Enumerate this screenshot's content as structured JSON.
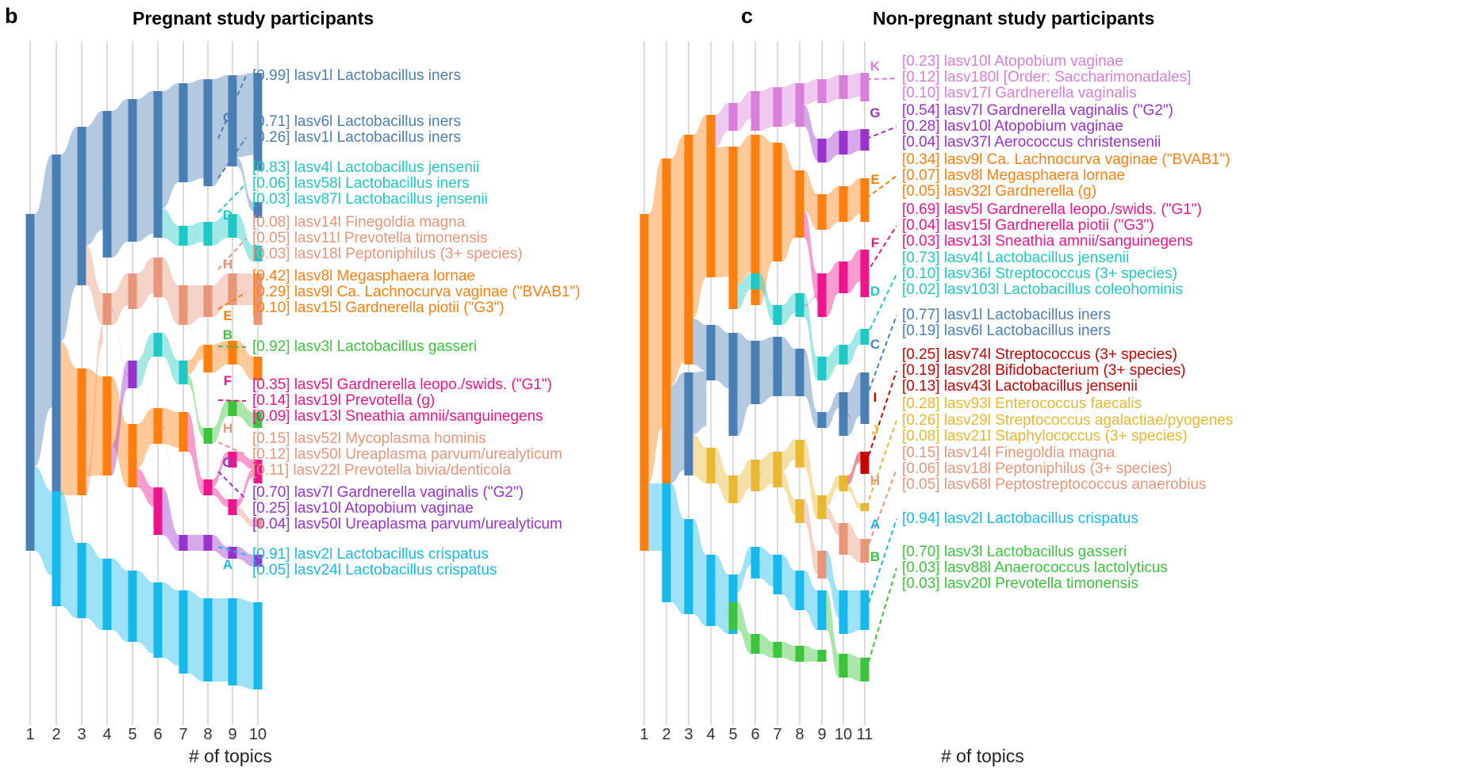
{
  "colors": {
    "A": "#17B9EC",
    "B": "#3CC43C",
    "C": "#4A7FB5",
    "D": "#1FC8C4",
    "E": "#FF7F0E",
    "F": "#F0148C",
    "G": "#9A32CD",
    "H": "#E8957A",
    "I": "#C80000",
    "J": "#E8B830",
    "K": "#D97ED9",
    "root": "#4A7FB5"
  },
  "panels": [
    {
      "id": "b",
      "letter": "b",
      "title": "Pregnant study participants",
      "xlabel": "# of topics",
      "ticks": [
        "1",
        "2",
        "3",
        "4",
        "5",
        "6",
        "7",
        "8",
        "9",
        "10"
      ],
      "final_topics": [
        {
          "id": "C",
          "label": "C",
          "color": "C",
          "annotations": [
            {
              "text": "[0.99] lasv1l Lactobacillus iners"
            },
            {
              "text": "[0.71] lasv6l Lactobacillus iners"
            },
            {
              "text": "[0.26] lasv1l Lactobacillus iners"
            }
          ]
        },
        {
          "id": "D",
          "label": "D",
          "color": "D",
          "annotations": [
            {
              "text": "[0.83] lasv4l Lactobacillus jensenii"
            },
            {
              "text": "[0.06] lasv58l Lactobacillus iners"
            },
            {
              "text": "[0.03] lasv87l Lactobacillus jensenii"
            }
          ]
        },
        {
          "id": "H1",
          "label": "H",
          "color": "H",
          "annotations": [
            {
              "text": "[0.08] lasv14l Finegoldia magna"
            },
            {
              "text": "[0.05] lasv11l Prevotella timonensis"
            },
            {
              "text": "[0.03] lasv18l Peptoniphilus (3+ species)"
            }
          ]
        },
        {
          "id": "E",
          "label": "E",
          "color": "E",
          "annotations": [
            {
              "text": "[0.42] lasv8l Megasphaera lornae"
            },
            {
              "text": "[0.29] lasv9l Ca. Lachnocurva vaginae (\"BVAB1\")"
            },
            {
              "text": "[0.10] lasv15l Gardnerella piotii (\"G3\")"
            }
          ]
        },
        {
          "id": "B",
          "label": "B",
          "color": "B",
          "annotations": [
            {
              "text": "[0.92] lasv3l Lactobacillus gasseri"
            }
          ]
        },
        {
          "id": "F",
          "label": "F",
          "color": "F",
          "annotations": [
            {
              "text": "[0.35] lasv5l Gardnerella leopo./swids. (\"G1\")"
            },
            {
              "text": "[0.14] lasv19l Prevotella (g)"
            },
            {
              "text": "[0.09] lasv13l Sneathia amnii/sanguinegens"
            }
          ]
        },
        {
          "id": "H2",
          "label": "H",
          "color": "H",
          "annotations": [
            {
              "text": "[0.15] lasv52l Mycoplasma hominis"
            },
            {
              "text": "[0.12] lasv50l Ureaplasma parvum/urealyticum"
            },
            {
              "text": "[0.11] lasv22l Prevotella bivia/denticola"
            }
          ]
        },
        {
          "id": "G",
          "label": "G",
          "color": "G",
          "annotations": [
            {
              "text": "[0.70] lasv7l Gardnerella vaginalis (\"G2\")"
            },
            {
              "text": "[0.25] lasv10l Atopobium vaginae"
            },
            {
              "text": "[0.04] lasv50l Ureaplasma parvum/urealyticum"
            }
          ]
        },
        {
          "id": "A",
          "label": "A",
          "color": "A",
          "annotations": [
            {
              "text": "[0.91] lasv2l Lactobacillus crispatus"
            },
            {
              "text": "[0.05] lasv24l Lactobacillus crispatus"
            }
          ]
        }
      ]
    },
    {
      "id": "c",
      "letter": "c",
      "title": "Non-pregnant study participants",
      "xlabel": "# of topics",
      "ticks": [
        "1",
        "2",
        "3",
        "4",
        "5",
        "6",
        "7",
        "8",
        "9",
        "10",
        "11"
      ],
      "final_topics": [
        {
          "id": "K",
          "label": "K",
          "color": "K",
          "annotations": [
            {
              "text": "[0.23] lasv10l Atopobium vaginae"
            },
            {
              "text": "[0.12] lasv180l [Order: Saccharimonadales]"
            },
            {
              "text": "[0.10] lasv17l Gardnerella vaginalis"
            }
          ]
        },
        {
          "id": "G",
          "label": "G",
          "color": "G",
          "annotations": [
            {
              "text": "[0.54] lasv7l Gardnerella vaginalis (\"G2\")"
            },
            {
              "text": "[0.28] lasv10l Atopobium vaginae"
            },
            {
              "text": "[0.04] lasv37l Aerococcus christensenii"
            }
          ]
        },
        {
          "id": "E",
          "label": "E",
          "color": "E",
          "annotations": [
            {
              "text": "[0.34] lasv9l Ca. Lachnocurva vaginae (\"BVAB1\")"
            },
            {
              "text": "[0.07] lasv8l Megasphaera lornae"
            },
            {
              "text": "[0.05] lasv32l Gardnerella (g)"
            }
          ]
        },
        {
          "id": "F",
          "label": "F",
          "color": "F",
          "annotations": [
            {
              "text": "[0.69] lasv5l Gardnerella leopo./swids. (\"G1\")"
            },
            {
              "text": "[0.04] lasv15l Gardnerella piotii (\"G3\")"
            },
            {
              "text": "[0.03] lasv13l Sneathia amnii/sanguinegens"
            }
          ]
        },
        {
          "id": "D",
          "label": "D",
          "color": "D",
          "annotations": [
            {
              "text": "[0.73] lasv4l Lactobacillus jensenii"
            },
            {
              "text": "[0.10] lasv36l Streptococcus (3+ species)"
            },
            {
              "text": "[0.02] lasv103l Lactobacillus coleohominis"
            }
          ]
        },
        {
          "id": "C",
          "label": "C",
          "color": "C",
          "annotations": [
            {
              "text": "[0.77] lasv1l Lactobacillus iners"
            },
            {
              "text": "[0.19] lasv6l Lactobacillus iners"
            }
          ]
        },
        {
          "id": "I",
          "label": "I",
          "color": "I",
          "annotations": [
            {
              "text": "[0.25] lasv74l Streptococcus (3+ species)"
            },
            {
              "text": "[0.19] lasv28l Bifidobacterium (3+ species)"
            },
            {
              "text": "[0.13] lasv43l Lactobacillus jensenii"
            }
          ]
        },
        {
          "id": "J",
          "label": "J",
          "color": "J",
          "annotations": [
            {
              "text": "[0.28] lasv93l Enterococcus faecalis"
            },
            {
              "text": "[0.26] lasv29l Streptococcus agalactiae/pyogenes"
            },
            {
              "text": "[0.08] lasv21l Staphylococcus (3+ species)"
            }
          ]
        },
        {
          "id": "H",
          "label": "H",
          "color": "H",
          "annotations": [
            {
              "text": "[0.15] lasv14l Finegoldia magna"
            },
            {
              "text": "[0.06] lasv18l Peptoniphilus (3+ species)"
            },
            {
              "text": "[0.05] lasv68l Peptostreptococcus anaerobius"
            }
          ]
        },
        {
          "id": "A",
          "label": "A",
          "color": "A",
          "annotations": [
            {
              "text": "[0.94] lasv2l Lactobacillus crispatus"
            }
          ]
        },
        {
          "id": "B",
          "label": "B",
          "color": "B",
          "annotations": [
            {
              "text": "[0.70] lasv3l Lactobacillus gasseri"
            },
            {
              "text": "[0.03] lasv88l Anaerococcus lactolyticus"
            },
            {
              "text": "[0.03] lasv20l Prevotella timonensis"
            }
          ]
        }
      ]
    }
  ]
}
